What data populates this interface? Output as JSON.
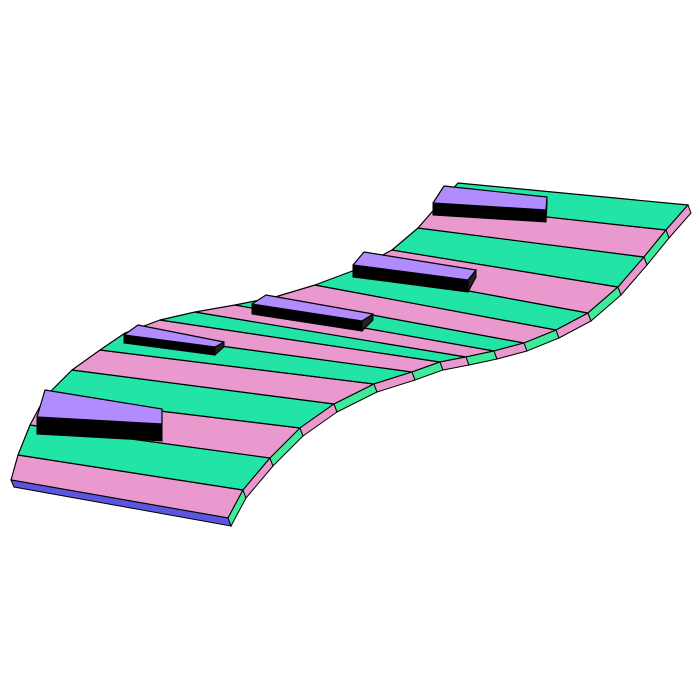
{
  "figure": {
    "description_kind": "3d-wavy-conveyor-diagram",
    "stripe_count": 18,
    "block_count": 5
  },
  "colors": {
    "background": "#ffffff",
    "stripe_pink": "#ea99cf",
    "stripe_green": "#22e4a6",
    "edge_pink": "#ea99cf",
    "edge_green": "#3fea9b",
    "block_top": "#b18cff",
    "block_side": "#000000",
    "bottom_edge": "#5b55e0",
    "outline": "#000000"
  }
}
